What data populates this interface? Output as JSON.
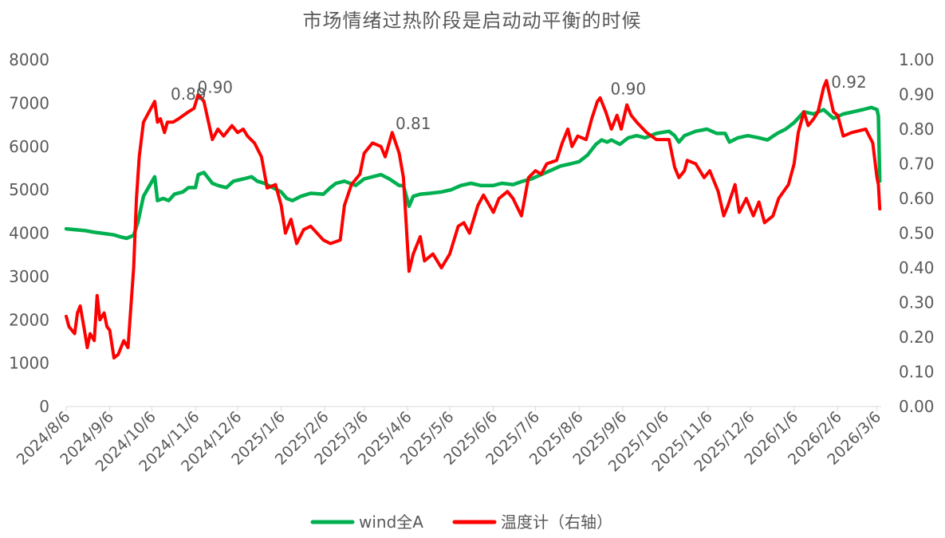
{
  "chart_data": {
    "type": "line",
    "title": "市场情绪过热阶段是启动动平衡的时候",
    "x_range": [
      "2024/8/6",
      "2026/3/9"
    ],
    "x_ticks": [
      "2024/8/6",
      "2024/9/6",
      "2024/10/6",
      "2024/11/6",
      "2024/12/6",
      "2025/1/6",
      "2025/2/6",
      "2025/3/6",
      "2025/4/6",
      "2025/5/6",
      "2025/6/6",
      "2025/7/6",
      "2025/8/6",
      "2025/9/6",
      "2025/10/6",
      "2025/11/6",
      "2025/12/6",
      "2026/1/6",
      "2026/2/6",
      "2026/3/6"
    ],
    "y_left": {
      "min": 0,
      "max": 8000,
      "ticks": [
        "0",
        "1000",
        "2000",
        "3000",
        "4000",
        "5000",
        "6000",
        "7000",
        "8000"
      ]
    },
    "y_right": {
      "min": 0,
      "max": 1,
      "ticks": [
        "0.00",
        "0.10",
        "0.20",
        "0.30",
        "0.40",
        "0.50",
        "0.60",
        "0.70",
        "0.80",
        "0.90",
        "1.00"
      ]
    },
    "legend_position": "bottom",
    "gridlines": false,
    "series": [
      {
        "name": "wind全A",
        "axis": "left",
        "color": "#00B050",
        "points": [
          [
            "2024/8/6",
            4100
          ],
          [
            "2024/8/12",
            4080
          ],
          [
            "2024/8/19",
            4060
          ],
          [
            "2024/8/26",
            4020
          ],
          [
            "2024/9/2",
            3990
          ],
          [
            "2024/9/9",
            3960
          ],
          [
            "2024/9/13",
            3920
          ],
          [
            "2024/9/18",
            3880
          ],
          [
            "2024/9/23",
            3950
          ],
          [
            "2024/9/26",
            4250
          ],
          [
            "2024/9/30",
            4850
          ],
          [
            "2024/10/8",
            5300
          ],
          [
            "2024/10/10",
            4750
          ],
          [
            "2024/10/14",
            4800
          ],
          [
            "2024/10/18",
            4750
          ],
          [
            "2024/10/22",
            4900
          ],
          [
            "2024/10/28",
            4950
          ],
          [
            "2024/11/1",
            5050
          ],
          [
            "2024/11/6",
            5050
          ],
          [
            "2024/11/8",
            5350
          ],
          [
            "2024/11/12",
            5400
          ],
          [
            "2024/11/18",
            5150
          ],
          [
            "2024/11/22",
            5100
          ],
          [
            "2024/11/28",
            5050
          ],
          [
            "2024/12/3",
            5200
          ],
          [
            "2024/12/10",
            5250
          ],
          [
            "2024/12/16",
            5300
          ],
          [
            "2024/12/20",
            5200
          ],
          [
            "2024/12/25",
            5150
          ],
          [
            "2024/12/31",
            5050
          ],
          [
            "2025/1/6",
            4950
          ],
          [
            "2025/1/10",
            4800
          ],
          [
            "2025/1/14",
            4750
          ],
          [
            "2025/1/20",
            4850
          ],
          [
            "2025/1/27",
            4920
          ],
          [
            "2025/2/5",
            4900
          ],
          [
            "2025/2/10",
            5050
          ],
          [
            "2025/2/14",
            5150
          ],
          [
            "2025/2/20",
            5200
          ],
          [
            "2025/2/28",
            5100
          ],
          [
            "2025/3/6",
            5250
          ],
          [
            "2025/3/12",
            5300
          ],
          [
            "2025/3/18",
            5350
          ],
          [
            "2025/3/24",
            5250
          ],
          [
            "2025/3/31",
            5100
          ],
          [
            "2025/4/3",
            5100
          ],
          [
            "2025/4/7",
            4620
          ],
          [
            "2025/4/10",
            4850
          ],
          [
            "2025/4/15",
            4900
          ],
          [
            "2025/4/22",
            4920
          ],
          [
            "2025/4/30",
            4950
          ],
          [
            "2025/5/7",
            5000
          ],
          [
            "2025/5/14",
            5100
          ],
          [
            "2025/5/21",
            5150
          ],
          [
            "2025/5/28",
            5100
          ],
          [
            "2025/6/6",
            5100
          ],
          [
            "2025/6/12",
            5150
          ],
          [
            "2025/6/20",
            5120
          ],
          [
            "2025/6/27",
            5200
          ],
          [
            "2025/7/3",
            5250
          ],
          [
            "2025/7/10",
            5350
          ],
          [
            "2025/7/17",
            5450
          ],
          [
            "2025/7/24",
            5550
          ],
          [
            "2025/7/31",
            5600
          ],
          [
            "2025/8/6",
            5650
          ],
          [
            "2025/8/12",
            5800
          ],
          [
            "2025/8/18",
            6050
          ],
          [
            "2025/8/22",
            6150
          ],
          [
            "2025/8/26",
            6100
          ],
          [
            "2025/8/29",
            6150
          ],
          [
            "2025/9/4",
            6050
          ],
          [
            "2025/9/10",
            6200
          ],
          [
            "2025/9/16",
            6250
          ],
          [
            "2025/9/22",
            6200
          ],
          [
            "2025/9/30",
            6300
          ],
          [
            "2025/10/9",
            6350
          ],
          [
            "2025/10/13",
            6250
          ],
          [
            "2025/10/16",
            6100
          ],
          [
            "2025/10/20",
            6250
          ],
          [
            "2025/10/28",
            6350
          ],
          [
            "2025/11/5",
            6400
          ],
          [
            "2025/11/12",
            6300
          ],
          [
            "2025/11/18",
            6300
          ],
          [
            "2025/11/21",
            6100
          ],
          [
            "2025/11/27",
            6200
          ],
          [
            "2025/12/4",
            6250
          ],
          [
            "2025/12/12",
            6200
          ],
          [
            "2025/12/18",
            6150
          ],
          [
            "2025/12/25",
            6300
          ],
          [
            "2025/12/31",
            6400
          ],
          [
            "2026/1/6",
            6550
          ],
          [
            "2026/1/13",
            6800
          ],
          [
            "2026/1/20",
            6750
          ],
          [
            "2026/1/27",
            6850
          ],
          [
            "2026/2/3",
            6650
          ],
          [
            "2026/2/10",
            6750
          ],
          [
            "2026/2/17",
            6800
          ],
          [
            "2026/2/24",
            6850
          ],
          [
            "2026/3/2",
            6900
          ],
          [
            "2026/3/6",
            6850
          ],
          [
            "2026/3/7",
            6700
          ],
          [
            "2026/3/8",
            5200
          ]
        ]
      },
      {
        "name": "温度计（右轴）",
        "axis": "right",
        "color": "#FF0000",
        "points": [
          [
            "2024/8/6",
            0.26
          ],
          [
            "2024/8/8",
            0.23
          ],
          [
            "2024/8/12",
            0.21
          ],
          [
            "2024/8/14",
            0.27
          ],
          [
            "2024/8/16",
            0.29
          ],
          [
            "2024/8/19",
            0.22
          ],
          [
            "2024/8/21",
            0.17
          ],
          [
            "2024/8/23",
            0.21
          ],
          [
            "2024/8/26",
            0.19
          ],
          [
            "2024/8/28",
            0.32
          ],
          [
            "2024/8/30",
            0.25
          ],
          [
            "2024/9/2",
            0.27
          ],
          [
            "2024/9/4",
            0.23
          ],
          [
            "2024/9/6",
            0.22
          ],
          [
            "2024/9/9",
            0.14
          ],
          [
            "2024/9/12",
            0.15
          ],
          [
            "2024/9/16",
            0.19
          ],
          [
            "2024/9/19",
            0.17
          ],
          [
            "2024/9/23",
            0.4
          ],
          [
            "2024/9/25",
            0.6
          ],
          [
            "2024/9/27",
            0.72
          ],
          [
            "2024/9/30",
            0.82
          ],
          [
            "2024/10/8",
            0.88
          ],
          [
            "2024/10/10",
            0.82
          ],
          [
            "2024/10/12",
            0.83
          ],
          [
            "2024/10/15",
            0.79
          ],
          [
            "2024/10/17",
            0.82
          ],
          [
            "2024/10/21",
            0.82
          ],
          [
            "2024/10/25",
            0.83
          ],
          [
            "2024/11/1",
            0.85
          ],
          [
            "2024/11/5",
            0.86
          ],
          [
            "2024/11/8",
            0.9
          ],
          [
            "2024/11/12",
            0.88
          ],
          [
            "2024/11/18",
            0.77
          ],
          [
            "2024/11/22",
            0.8
          ],
          [
            "2024/11/26",
            0.78
          ],
          [
            "2024/12/2",
            0.81
          ],
          [
            "2024/12/6",
            0.79
          ],
          [
            "2024/12/10",
            0.8
          ],
          [
            "2024/12/13",
            0.78
          ],
          [
            "2024/12/18",
            0.76
          ],
          [
            "2024/12/23",
            0.72
          ],
          [
            "2024/12/27",
            0.63
          ],
          [
            "2025/1/2",
            0.64
          ],
          [
            "2025/1/6",
            0.58
          ],
          [
            "2025/1/9",
            0.5
          ],
          [
            "2025/1/13",
            0.54
          ],
          [
            "2025/1/17",
            0.47
          ],
          [
            "2025/1/22",
            0.51
          ],
          [
            "2025/1/27",
            0.52
          ],
          [
            "2025/2/5",
            0.48
          ],
          [
            "2025/2/10",
            0.47
          ],
          [
            "2025/2/17",
            0.48
          ],
          [
            "2025/2/20",
            0.58
          ],
          [
            "2025/2/25",
            0.64
          ],
          [
            "2025/3/3",
            0.67
          ],
          [
            "2025/3/6",
            0.73
          ],
          [
            "2025/3/12",
            0.76
          ],
          [
            "2025/3/18",
            0.75
          ],
          [
            "2025/3/21",
            0.72
          ],
          [
            "2025/3/26",
            0.79
          ],
          [
            "2025/3/31",
            0.73
          ],
          [
            "2025/4/3",
            0.66
          ],
          [
            "2025/4/7",
            0.39
          ],
          [
            "2025/4/10",
            0.44
          ],
          [
            "2025/4/15",
            0.49
          ],
          [
            "2025/4/18",
            0.42
          ],
          [
            "2025/4/24",
            0.44
          ],
          [
            "2025/4/30",
            0.4
          ],
          [
            "2025/5/6",
            0.44
          ],
          [
            "2025/5/12",
            0.52
          ],
          [
            "2025/5/16",
            0.53
          ],
          [
            "2025/5/20",
            0.5
          ],
          [
            "2025/5/26",
            0.58
          ],
          [
            "2025/5/30",
            0.61
          ],
          [
            "2025/6/6",
            0.56
          ],
          [
            "2025/6/10",
            0.6
          ],
          [
            "2025/6/16",
            0.62
          ],
          [
            "2025/6/20",
            0.6
          ],
          [
            "2025/6/26",
            0.55
          ],
          [
            "2025/7/1",
            0.66
          ],
          [
            "2025/7/6",
            0.68
          ],
          [
            "2025/7/10",
            0.67
          ],
          [
            "2025/7/14",
            0.7
          ],
          [
            "2025/7/21",
            0.71
          ],
          [
            "2025/7/25",
            0.76
          ],
          [
            "2025/7/29",
            0.8
          ],
          [
            "2025/8/1",
            0.75
          ],
          [
            "2025/8/5",
            0.78
          ],
          [
            "2025/8/11",
            0.77
          ],
          [
            "2025/8/15",
            0.83
          ],
          [
            "2025/8/19",
            0.88
          ],
          [
            "2025/8/21",
            0.89
          ],
          [
            "2025/8/25",
            0.85
          ],
          [
            "2025/8/29",
            0.8
          ],
          [
            "2025/9/2",
            0.84
          ],
          [
            "2025/9/5",
            0.8
          ],
          [
            "2025/9/9",
            0.87
          ],
          [
            "2025/9/12",
            0.84
          ],
          [
            "2025/9/16",
            0.82
          ],
          [
            "2025/9/23",
            0.79
          ],
          [
            "2025/9/30",
            0.77
          ],
          [
            "2025/10/9",
            0.77
          ],
          [
            "2025/10/13",
            0.69
          ],
          [
            "2025/10/16",
            0.66
          ],
          [
            "2025/10/20",
            0.68
          ],
          [
            "2025/10/22",
            0.71
          ],
          [
            "2025/10/28",
            0.7
          ],
          [
            "2025/11/3",
            0.66
          ],
          [
            "2025/11/7",
            0.68
          ],
          [
            "2025/11/13",
            0.62
          ],
          [
            "2025/11/17",
            0.55
          ],
          [
            "2025/11/20",
            0.58
          ],
          [
            "2025/11/25",
            0.64
          ],
          [
            "2025/11/28",
            0.56
          ],
          [
            "2025/12/3",
            0.6
          ],
          [
            "2025/12/8",
            0.55
          ],
          [
            "2025/12/12",
            0.59
          ],
          [
            "2025/12/16",
            0.53
          ],
          [
            "2025/12/22",
            0.55
          ],
          [
            "2025/12/26",
            0.6
          ],
          [
            "2026/1/2",
            0.64
          ],
          [
            "2026/1/6",
            0.7
          ],
          [
            "2026/1/9",
            0.79
          ],
          [
            "2026/1/13",
            0.85
          ],
          [
            "2026/1/16",
            0.81
          ],
          [
            "2026/1/20",
            0.83
          ],
          [
            "2026/1/23",
            0.85
          ],
          [
            "2026/1/27",
            0.92
          ],
          [
            "2026/1/29",
            0.94
          ],
          [
            "2026/2/3",
            0.85
          ],
          [
            "2026/2/6",
            0.84
          ],
          [
            "2026/2/10",
            0.78
          ],
          [
            "2026/2/16",
            0.79
          ],
          [
            "2026/2/26",
            0.8
          ],
          [
            "2026/3/3",
            0.76
          ],
          [
            "2026/3/6",
            0.66
          ],
          [
            "2026/3/7",
            0.64
          ],
          [
            "2026/3/8",
            0.57
          ]
        ]
      }
    ],
    "annotations": [
      {
        "text": "0.89",
        "x": "2024/11/1",
        "axis": "right",
        "y": 0.885
      },
      {
        "text": "0.90",
        "x": "2024/11/20",
        "axis": "right",
        "y": 0.905
      },
      {
        "text": "0.81",
        "x": "2025/4/10",
        "axis": "right",
        "y": 0.8
      },
      {
        "text": "0.90",
        "x": "2025/9/10",
        "axis": "right",
        "y": 0.9
      },
      {
        "text": "0.92",
        "x": "2026/2/14",
        "axis": "right",
        "y": 0.92
      }
    ]
  }
}
